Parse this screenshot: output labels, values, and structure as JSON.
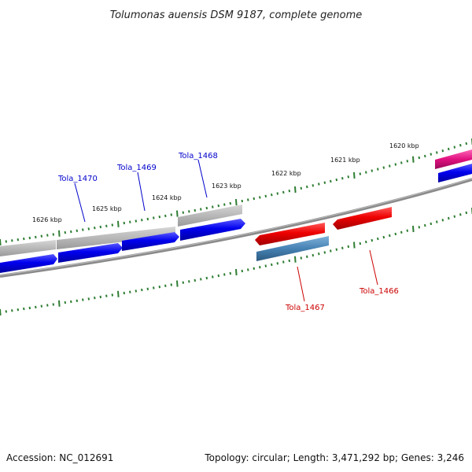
{
  "title": "Tolumonas auensis DSM 9187, complete genome",
  "accession_text": "Accession: NC_012691",
  "summary_text": "Topology: circular; Length: 3,471,292 bp; Genes: 3,246",
  "colors": {
    "backbone": "#808080",
    "forward_cds": "#0000ee",
    "gene_gray": "#b8b8b8",
    "reverse_red": "#ee0000",
    "reverse_steel": "#4682b4",
    "pink": "#e0117f",
    "tick_green": "#2e7d32",
    "label_blue": "#0000cc",
    "label_red": "#cc0000"
  },
  "scale_ticks": [
    {
      "kbp": 1620,
      "label": "1620 kbp"
    },
    {
      "kbp": 1621,
      "label": "1621 kbp"
    },
    {
      "kbp": 1622,
      "label": "1622 kbp"
    },
    {
      "kbp": 1623,
      "label": "1623 kbp"
    },
    {
      "kbp": 1624,
      "label": "1624 kbp"
    },
    {
      "kbp": 1625,
      "label": "1625 kbp"
    },
    {
      "kbp": 1626,
      "label": "1626 kbp"
    }
  ],
  "gene_labels": [
    {
      "name": "Tola_1470",
      "strand": "forward"
    },
    {
      "name": "Tola_1469",
      "strand": "forward"
    },
    {
      "name": "Tola_1468",
      "strand": "forward"
    },
    {
      "name": "Tola_1467",
      "strand": "reverse"
    },
    {
      "name": "Tola_1466",
      "strand": "reverse"
    }
  ]
}
